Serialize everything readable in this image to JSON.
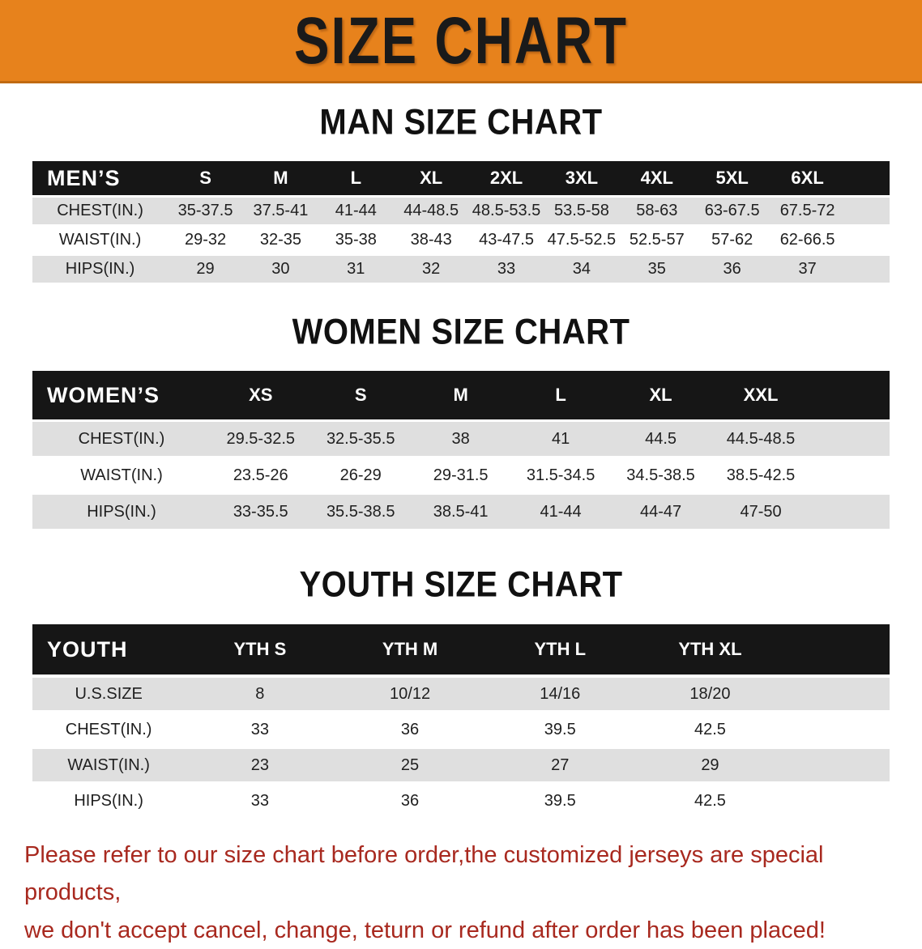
{
  "banner": {
    "title": "SIZE CHART",
    "bg_color": "#E7821C",
    "edge_color": "#C06A12",
    "text_color": "#1A1A1A"
  },
  "colors": {
    "header_bar": "#161616",
    "header_text": "#FFFFFF",
    "row_stripe": "#DFDFDF",
    "cell_text": "#1F1F1F",
    "disclaimer_text": "#A8291F"
  },
  "sections": [
    {
      "title": "MAN SIZE CHART",
      "table": {
        "header_label": "MEN’S",
        "columns": [
          "S",
          "M",
          "L",
          "XL",
          "2XL",
          "3XL",
          "4XL",
          "5XL",
          "6XL"
        ],
        "rows": [
          {
            "label": "CHEST(IN.)",
            "values": [
              "35-37.5",
              "37.5-41",
              "41-44",
              "44-48.5",
              "48.5-53.5",
              "53.5-58",
              "58-63",
              "63-67.5",
              "67.5-72"
            ]
          },
          {
            "label": "WAIST(IN.)",
            "values": [
              "29-32",
              "32-35",
              "35-38",
              "38-43",
              "43-47.5",
              "47.5-52.5",
              "52.5-57",
              "57-62",
              "62-66.5"
            ]
          },
          {
            "label": "HIPS(IN.)",
            "values": [
              "29",
              "30",
              "31",
              "32",
              "33",
              "34",
              "35",
              "36",
              "37"
            ]
          }
        ]
      }
    },
    {
      "title": "WOMEN SIZE CHART",
      "table": {
        "header_label": "WOMEN’S",
        "columns": [
          "XS",
          "S",
          "M",
          "L",
          "XL",
          "XXL"
        ],
        "rows": [
          {
            "label": "CHEST(IN.)",
            "values": [
              "29.5-32.5",
              "32.5-35.5",
              "38",
              "41",
              "44.5",
              "44.5-48.5"
            ]
          },
          {
            "label": "WAIST(IN.)",
            "values": [
              "23.5-26",
              "26-29",
              "29-31.5",
              "31.5-34.5",
              "34.5-38.5",
              "38.5-42.5"
            ]
          },
          {
            "label": "HIPS(IN.)",
            "values": [
              "33-35.5",
              "35.5-38.5",
              "38.5-41",
              "41-44",
              "44-47",
              "47-50"
            ]
          }
        ]
      }
    },
    {
      "title": "YOUTH SIZE CHART",
      "table": {
        "header_label": "YOUTH",
        "columns": [
          "YTH S",
          "YTH M",
          "YTH L",
          "YTH XL"
        ],
        "rows": [
          {
            "label": "U.S.SIZE",
            "values": [
              "8",
              "10/12",
              "14/16",
              "18/20"
            ]
          },
          {
            "label": "CHEST(IN.)",
            "values": [
              "33",
              "36",
              "39.5",
              "42.5"
            ]
          },
          {
            "label": "WAIST(IN.)",
            "values": [
              "23",
              "25",
              "27",
              "29"
            ]
          },
          {
            "label": "HIPS(IN.)",
            "values": [
              "33",
              "36",
              "39.5",
              "42.5"
            ]
          }
        ]
      }
    }
  ],
  "disclaimer": {
    "line1": "Please refer to our size chart before order,the customized jerseys are special products,",
    "line2": "we don't accept cancel, change, teturn or refund after order has been placed!"
  }
}
